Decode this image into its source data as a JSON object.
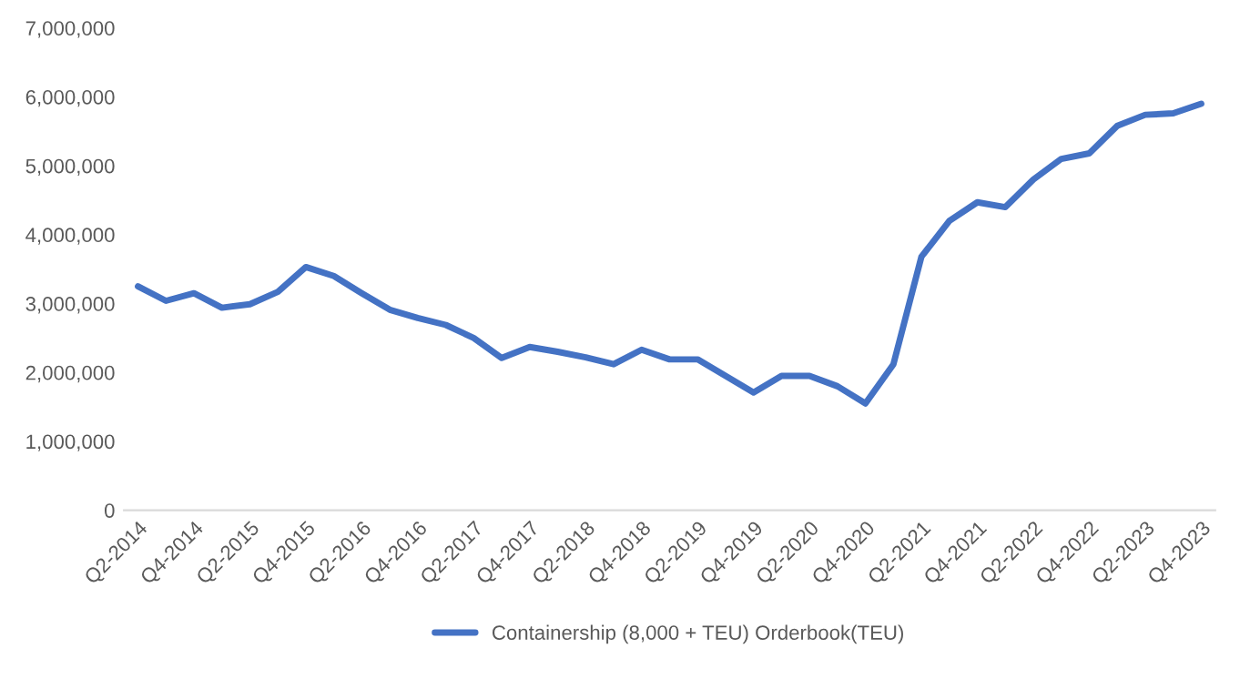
{
  "chart_data": {
    "type": "line",
    "categories": [
      "Q2-2014",
      null,
      "Q4-2014",
      null,
      "Q2-2015",
      null,
      "Q4-2015",
      null,
      "Q2-2016",
      null,
      "Q4-2016",
      null,
      "Q2-2017",
      null,
      "Q4-2017",
      null,
      "Q2-2018",
      null,
      "Q4-2018",
      null,
      "Q2-2019",
      null,
      "Q4-2019",
      null,
      "Q2-2020",
      null,
      "Q4-2020",
      null,
      "Q2-2021",
      null,
      "Q4-2021",
      null,
      "Q2-2022",
      null,
      "Q4-2022",
      null,
      "Q2-2023",
      null,
      "Q4-2023"
    ],
    "series": [
      {
        "name": "Containership (8,000 + TEU) Orderbook(TEU)",
        "color": "#4472c4",
        "values": [
          3250000,
          3040000,
          3150000,
          2940000,
          2990000,
          3170000,
          3530000,
          3400000,
          3150000,
          2910000,
          2790000,
          2690000,
          2500000,
          2210000,
          2370000,
          2300000,
          2220000,
          2120000,
          2330000,
          2190000,
          2190000,
          1950000,
          1710000,
          1950000,
          1950000,
          1800000,
          1550000,
          2120000,
          3680000,
          4200000,
          4470000,
          4400000,
          4800000,
          5100000,
          5180000,
          5580000,
          5740000,
          5760000,
          5900000
        ]
      }
    ],
    "ylim": [
      0,
      7000000
    ],
    "yticks": [
      {
        "value": 0,
        "label": "0"
      },
      {
        "value": 1000000,
        "label": "1,000,000"
      },
      {
        "value": 2000000,
        "label": "2,000,000"
      },
      {
        "value": 3000000,
        "label": "3,000,000"
      },
      {
        "value": 4000000,
        "label": "4,000,000"
      },
      {
        "value": 5000000,
        "label": "5,000,000"
      },
      {
        "value": 6000000,
        "label": "6,000,000"
      },
      {
        "value": 7000000,
        "label": "7,000,000"
      }
    ],
    "grid": false,
    "legend": "bottom",
    "marker": "none",
    "line_style": "solid"
  }
}
